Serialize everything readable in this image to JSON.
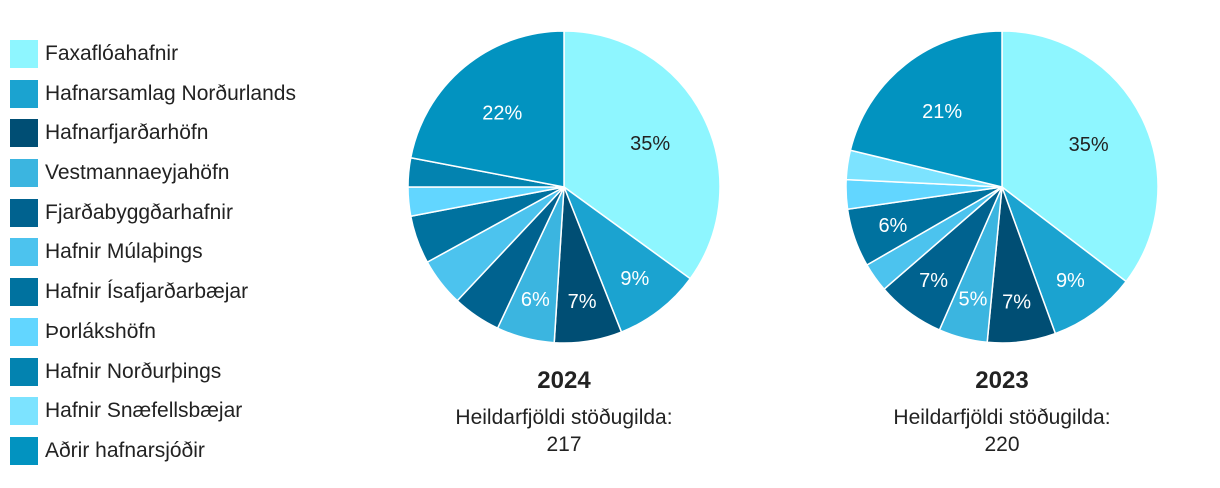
{
  "legend": [
    {
      "label": "Faxaflóahafnir",
      "color": "#8EF6FF"
    },
    {
      "label": "Hafnarsamlag Norðurlands",
      "color": "#1BA3D0"
    },
    {
      "label": "Hafnarfjarðarhöfn",
      "color": "#004E74"
    },
    {
      "label": "Vestmannaeyjahöfn",
      "color": "#3BB5E0"
    },
    {
      "label": "Fjarðabyggðarhafnir",
      "color": "#00628F"
    },
    {
      "label": "Hafnir Múlaþings",
      "color": "#4CC3EE"
    },
    {
      "label": "Hafnir Ísafjarðarbæjar",
      "color": "#00729F"
    },
    {
      "label": "Þorlákshöfn",
      "color": "#62D6FF"
    },
    {
      "label": "Hafnir Norðurþings",
      "color": "#0383B0"
    },
    {
      "label": "Hafnir Snæfellsbæjar",
      "color": "#7CE3FF"
    },
    {
      "label": "Aðrir hafnarsjóðir",
      "color": "#0293C0"
    }
  ],
  "chart_data": [
    {
      "type": "pie",
      "title": "2024",
      "caption_line1": "Heildarfjöldi stöðugilda:",
      "caption_line2": "217",
      "categories": [
        "Faxaflóahafnir",
        "Hafnarsamlag Norðurlands",
        "Hafnarfjarðarhöfn",
        "Vestmannaeyjahöfn",
        "Fjarðabyggðarhafnir",
        "Hafnir Múlaþings",
        "Hafnir Ísafjarðarbæjar",
        "Þorlákshöfn",
        "Hafnir Norðurþings",
        "Hafnir Snæfellsbæjar",
        "Aðrir hafnarsjóðir"
      ],
      "values": [
        35,
        9,
        7,
        6,
        5,
        5,
        5,
        3,
        3,
        0,
        22
      ],
      "labels": [
        "35%",
        "9%",
        "7%",
        "6%",
        "",
        "",
        "",
        "",
        "",
        "",
        "22%"
      ]
    },
    {
      "type": "pie",
      "title": "2023",
      "caption_line1": "Heildarfjöldi stöðugilda:",
      "caption_line2": "220",
      "categories": [
        "Faxaflóahafnir",
        "Hafnarsamlag Norðurlands",
        "Hafnarfjarðarhöfn",
        "Vestmannaeyjahöfn",
        "Fjarðabyggðarhafnir",
        "Hafnir Múlaþings",
        "Hafnir Ísafjarðarbæjar",
        "Þorlákshöfn",
        "Hafnir Norðurþings",
        "Hafnir Snæfellsbæjar",
        "Aðrir hafnarsjóðir"
      ],
      "values": [
        35,
        9,
        7,
        5,
        7,
        3,
        6,
        3,
        0,
        3,
        21
      ],
      "labels": [
        "35%",
        "9%",
        "7%",
        "5%",
        "7%",
        "",
        "6%",
        "",
        "",
        "",
        "21%"
      ]
    }
  ]
}
